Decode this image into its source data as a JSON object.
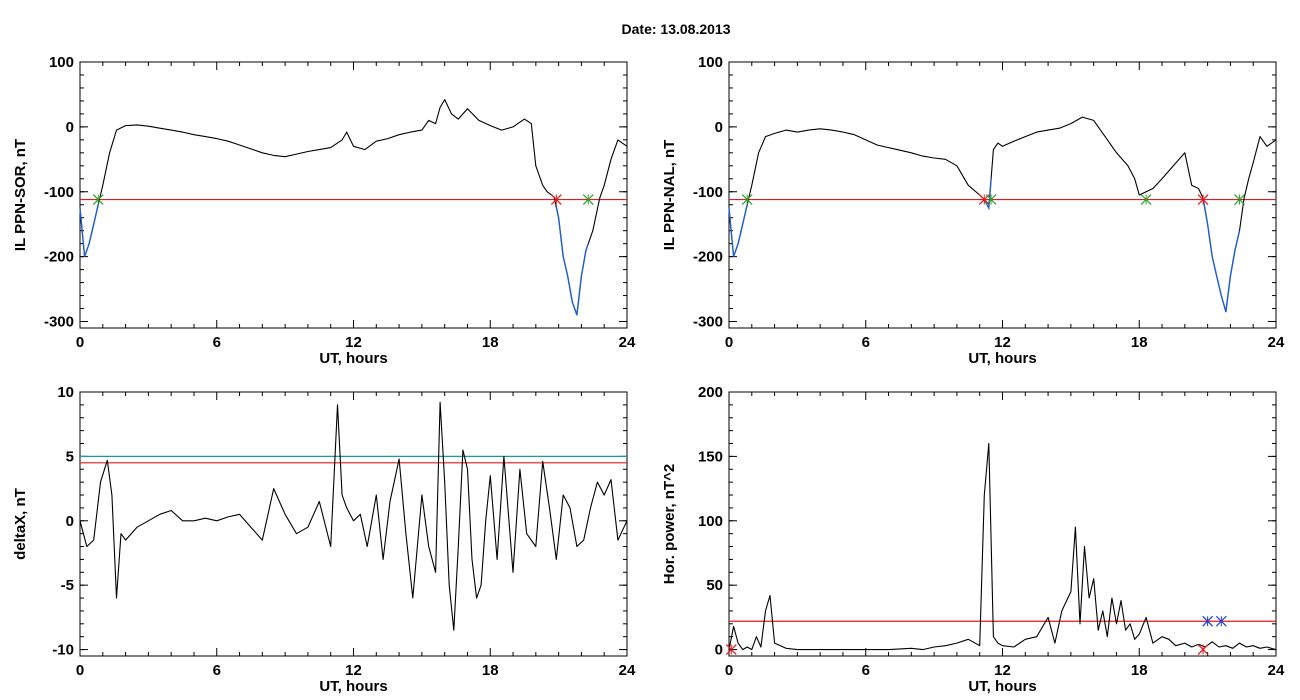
{
  "figure": {
    "title": "Date:  13.08.2013",
    "colors": {
      "threshold": "#e41a1c",
      "cyan_line": "#1a9a9a",
      "blue_segment": "#1f5fd6",
      "green_marker": "#2ca02c",
      "red_marker": "#e41a1c",
      "blue_marker": "#1f3fd6"
    }
  },
  "chart_data": [
    {
      "id": "sor",
      "type": "line",
      "title": "",
      "xlabel": "UT, hours",
      "ylabel": "IL PPN-SOR, nT",
      "xlim": [
        0,
        24
      ],
      "ylim": [
        -310,
        100
      ],
      "xticks": [
        0,
        6,
        12,
        18,
        24
      ],
      "yticks": [
        100,
        0,
        -100,
        -200,
        -300
      ],
      "ytick_labels": [
        "100",
        "0",
        "-100",
        "-200",
        "-300"
      ],
      "threshold": -112,
      "series": [
        {
          "x": [
            0,
            0.2,
            0.4,
            0.6,
            0.8,
            1.0,
            1.3,
            1.6,
            2.0,
            2.5,
            3.0,
            3.5,
            4.0,
            4.5,
            5.0,
            5.5,
            6.0,
            6.5,
            7.0,
            7.5,
            8.0,
            8.5,
            9.0,
            9.5,
            10.0,
            10.5,
            11.0,
            11.5,
            11.7,
            12.0,
            12.5,
            13.0,
            13.5,
            14.0,
            14.5,
            15.0,
            15.3,
            15.6,
            15.8,
            16.0,
            16.3,
            16.6,
            17.0,
            17.5,
            18.0,
            18.5,
            19.0,
            19.5,
            19.8,
            20.0,
            20.3,
            20.5,
            20.8,
            21.0,
            21.2,
            21.4,
            21.6,
            21.8,
            22.0,
            22.2,
            22.5,
            22.8,
            23.0,
            23.3,
            23.6,
            24.0
          ],
          "y": [
            -125,
            -200,
            -180,
            -150,
            -120,
            -90,
            -40,
            -5,
            2,
            3,
            1,
            -2,
            -5,
            -8,
            -12,
            -15,
            -18,
            -22,
            -28,
            -34,
            -40,
            -44,
            -46,
            -42,
            -38,
            -35,
            -32,
            -20,
            -8,
            -30,
            -35,
            -22,
            -18,
            -12,
            -8,
            -5,
            10,
            5,
            30,
            42,
            20,
            12,
            28,
            10,
            2,
            -5,
            0,
            12,
            5,
            -60,
            -90,
            -100,
            -108,
            -140,
            -200,
            -230,
            -270,
            -290,
            -230,
            -190,
            -160,
            -110,
            -90,
            -50,
            -20,
            -30
          ]
        }
      ],
      "crossings": [
        {
          "x": 0.8,
          "marker": "green"
        },
        {
          "x": 20.9,
          "marker": "red"
        },
        {
          "x": 22.3,
          "marker": "green"
        }
      ],
      "below_segments": [
        [
          0,
          0.8
        ],
        [
          20.9,
          22.3
        ]
      ]
    },
    {
      "id": "nal",
      "type": "line",
      "title": "",
      "xlabel": "UT, hours",
      "ylabel": "IL PPN-NAL, nT",
      "xlim": [
        0,
        24
      ],
      "ylim": [
        -310,
        100
      ],
      "xticks": [
        0,
        6,
        12,
        18,
        24
      ],
      "yticks": [
        100,
        0,
        -100,
        -200,
        -300
      ],
      "ytick_labels": [
        "100",
        "0",
        "-100",
        "-200",
        "-300"
      ],
      "threshold": -112,
      "series": [
        {
          "x": [
            0,
            0.2,
            0.4,
            0.6,
            0.8,
            1.0,
            1.3,
            1.6,
            2.0,
            2.5,
            3.0,
            3.5,
            4.0,
            4.5,
            5.0,
            5.5,
            6.0,
            6.5,
            7.0,
            7.5,
            8.0,
            8.5,
            9.0,
            9.5,
            10.0,
            10.5,
            11.0,
            11.2,
            11.4,
            11.6,
            11.8,
            12.0,
            12.5,
            13.0,
            13.5,
            14.0,
            14.5,
            15.0,
            15.5,
            16.0,
            16.5,
            17.0,
            17.5,
            17.8,
            18.0,
            18.3,
            18.6,
            19.0,
            19.5,
            20.0,
            20.3,
            20.6,
            20.8,
            21.0,
            21.2,
            21.4,
            21.6,
            21.8,
            22.0,
            22.2,
            22.4,
            22.6,
            22.8,
            23.0,
            23.3,
            23.6,
            24.0
          ],
          "y": [
            -125,
            -200,
            -180,
            -150,
            -120,
            -90,
            -40,
            -15,
            -10,
            -5,
            -8,
            -5,
            -3,
            -5,
            -8,
            -12,
            -20,
            -28,
            -32,
            -36,
            -40,
            -45,
            -48,
            -50,
            -60,
            -90,
            -105,
            -112,
            -125,
            -35,
            -25,
            -30,
            -22,
            -15,
            -8,
            -5,
            -2,
            5,
            15,
            10,
            -15,
            -40,
            -60,
            -80,
            -105,
            -100,
            -95,
            -80,
            -60,
            -40,
            -90,
            -95,
            -110,
            -150,
            -200,
            -230,
            -260,
            -285,
            -230,
            -190,
            -160,
            -110,
            -80,
            -55,
            -15,
            -30,
            -20
          ]
        }
      ],
      "crossings": [
        {
          "x": 0.8,
          "marker": "green"
        },
        {
          "x": 11.2,
          "marker": "red"
        },
        {
          "x": 11.5,
          "marker": "green"
        },
        {
          "x": 18.3,
          "marker": "green"
        },
        {
          "x": 20.8,
          "marker": "red"
        },
        {
          "x": 22.4,
          "marker": "green"
        }
      ],
      "below_segments": [
        [
          0,
          0.8
        ],
        [
          11.2,
          11.5
        ],
        [
          20.8,
          22.4
        ]
      ]
    },
    {
      "id": "deltax",
      "type": "line",
      "title": "",
      "xlabel": "UT, hours",
      "ylabel": "deltaX, nT",
      "xlim": [
        0,
        24
      ],
      "ylim": [
        -10.5,
        10
      ],
      "xticks": [
        0,
        6,
        12,
        18,
        24
      ],
      "yticks": [
        10,
        5,
        0,
        -5,
        -10
      ],
      "ytick_labels": [
        "10",
        "5",
        "0",
        "-5",
        "-10"
      ],
      "threshold": 4.5,
      "threshold2": 5.0,
      "series": [
        {
          "x": [
            0,
            0.3,
            0.6,
            0.9,
            1.2,
            1.4,
            1.6,
            1.8,
            2.0,
            2.5,
            3.0,
            3.5,
            4.0,
            4.5,
            5.0,
            5.5,
            6.0,
            6.5,
            7.0,
            7.5,
            8.0,
            8.5,
            9.0,
            9.5,
            10.0,
            10.5,
            11.0,
            11.3,
            11.5,
            11.7,
            12.0,
            12.3,
            12.6,
            13.0,
            13.3,
            13.6,
            14.0,
            14.3,
            14.6,
            15.0,
            15.3,
            15.6,
            15.8,
            16.0,
            16.2,
            16.4,
            16.6,
            16.8,
            17.0,
            17.2,
            17.4,
            17.6,
            17.8,
            18.0,
            18.3,
            18.6,
            19.0,
            19.3,
            19.6,
            20.0,
            20.3,
            20.6,
            20.9,
            21.2,
            21.5,
            21.8,
            22.1,
            22.4,
            22.7,
            23.0,
            23.3,
            23.6,
            24.0
          ],
          "y": [
            0,
            -2,
            -1.5,
            3,
            4.7,
            2,
            -6,
            -1,
            -1.5,
            -0.5,
            0,
            0.5,
            0.8,
            0,
            0,
            0.2,
            0,
            0.3,
            0.5,
            -0.5,
            -1.5,
            2.5,
            0.5,
            -1,
            -0.5,
            1.5,
            -2,
            9,
            2,
            1,
            0,
            0.5,
            -2,
            2,
            -3,
            1.5,
            4.8,
            -1,
            -6,
            2,
            -2,
            -4,
            9.2,
            3,
            -5,
            -8.5,
            -2,
            5.5,
            4,
            -3,
            -6,
            -5,
            0,
            3.5,
            -3,
            5,
            -4,
            4,
            -1,
            -2,
            4.6,
            1,
            -3,
            2,
            1,
            -2,
            -1.5,
            1,
            3,
            2,
            3.2,
            -1.5,
            0
          ]
        }
      ],
      "crossings": []
    },
    {
      "id": "power",
      "type": "line",
      "title": "",
      "xlabel": "UT, hours",
      "ylabel": "Hor. power, nT^2",
      "xlim": [
        0,
        24
      ],
      "ylim": [
        -5,
        200
      ],
      "xticks": [
        0,
        6,
        12,
        18,
        24
      ],
      "yticks": [
        200,
        150,
        100,
        50,
        0
      ],
      "ytick_labels": [
        "200",
        "150",
        "100",
        "50",
        "0"
      ],
      "threshold": 22,
      "series": [
        {
          "x": [
            0,
            0.2,
            0.4,
            0.6,
            0.8,
            1.0,
            1.2,
            1.4,
            1.6,
            1.8,
            2.0,
            2.5,
            3.0,
            4.0,
            5.0,
            6.0,
            7.0,
            8.0,
            8.5,
            9.0,
            9.5,
            10.0,
            10.5,
            11.0,
            11.2,
            11.4,
            11.6,
            11.8,
            12.0,
            12.5,
            13.0,
            13.5,
            14.0,
            14.3,
            14.6,
            15.0,
            15.2,
            15.4,
            15.6,
            15.8,
            16.0,
            16.2,
            16.4,
            16.6,
            16.8,
            17.0,
            17.2,
            17.4,
            17.6,
            17.8,
            18.0,
            18.3,
            18.6,
            19.0,
            19.3,
            19.6,
            20.0,
            20.3,
            20.6,
            20.9,
            21.2,
            21.5,
            21.8,
            22.1,
            22.4,
            22.7,
            23.0,
            23.3,
            23.6,
            24.0
          ],
          "y": [
            0,
            18,
            5,
            0,
            2,
            0,
            10,
            2,
            30,
            42,
            5,
            1,
            0,
            0,
            0,
            0,
            0,
            1,
            0,
            2,
            3,
            5,
            8,
            3,
            120,
            160,
            10,
            5,
            3,
            2,
            8,
            10,
            25,
            5,
            30,
            45,
            95,
            20,
            80,
            40,
            55,
            15,
            30,
            10,
            40,
            20,
            38,
            15,
            20,
            8,
            12,
            25,
            5,
            10,
            8,
            3,
            5,
            2,
            4,
            2,
            6,
            2,
            3,
            1,
            5,
            2,
            3,
            1,
            2,
            0
          ]
        }
      ],
      "crossings": [
        {
          "x": 0.1,
          "marker": "red"
        },
        {
          "x": 20.8,
          "marker": "red"
        },
        {
          "x": 21.0,
          "marker": "blue"
        },
        {
          "x": 21.6,
          "marker": "blue"
        }
      ],
      "markers_at_threshold": true
    }
  ]
}
